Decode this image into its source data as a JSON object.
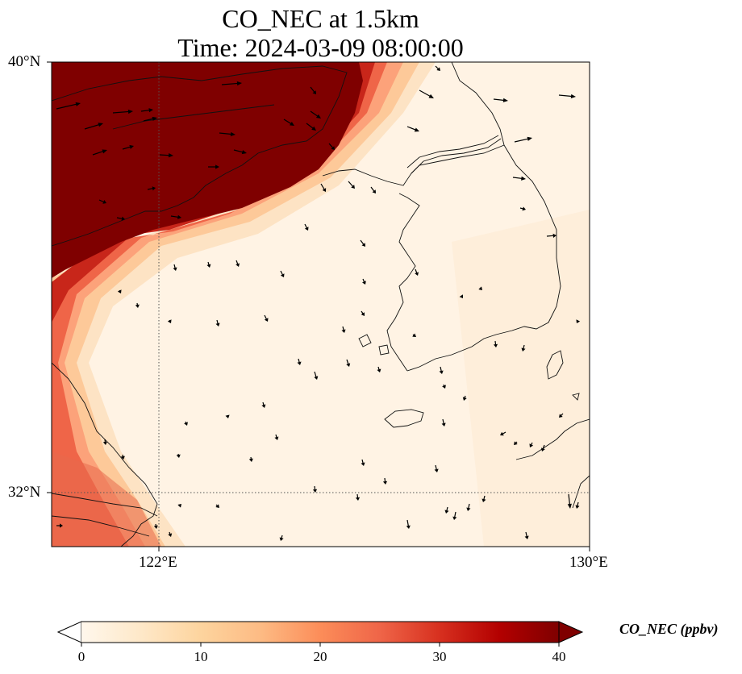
{
  "title": {
    "line1": "CO_NEC at 1.5km",
    "line2": "Time: 2024-03-09 08:00:00"
  },
  "map": {
    "region": "Yellow Sea / Korean Peninsula",
    "lon_range": [
      120,
      130
    ],
    "lat_range": [
      31,
      40
    ],
    "gridlines": {
      "lon": 122,
      "lat": 32
    },
    "y_ticks": [
      "40°N",
      "32°N"
    ],
    "x_ticks": [
      "122°E",
      "130°E"
    ]
  },
  "colorbar": {
    "label": "CO_NEC (ppbv)",
    "ticks": [
      "0",
      "10",
      "20",
      "30",
      "40"
    ],
    "range": [
      0,
      40
    ],
    "extend": "both",
    "colormap": "OrRd",
    "colors": [
      "#fff7ec",
      "#fee8c8",
      "#fdd49e",
      "#fdbb84",
      "#fc8d59",
      "#ef6548",
      "#d7301f",
      "#b30000",
      "#7f0000"
    ]
  },
  "field_summary": {
    "high_region": "northwest (Bohai / Shandong), >= 40 ppbv",
    "low_region": "Yellow Sea, Korea, East China Sea, ~0-5 ppbv",
    "wind_vectors": "shown as black arrows"
  }
}
